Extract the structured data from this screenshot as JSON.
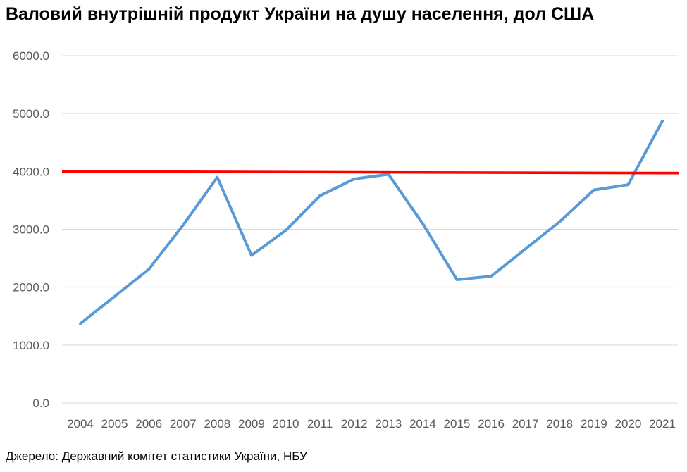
{
  "chart_data": {
    "type": "line",
    "title": "Валовий внутрішній продукт України на душу населення, дол США",
    "xlabel": "",
    "ylabel": "",
    "ylim": [
      0,
      6000
    ],
    "yticks": [
      "0.0",
      "1000.0",
      "2000.0",
      "3000.0",
      "4000.0",
      "5000.0",
      "6000.0"
    ],
    "yticks_values": [
      0,
      1000,
      2000,
      3000,
      4000,
      5000,
      6000
    ],
    "categories": [
      "2004",
      "2005",
      "2006",
      "2007",
      "2008",
      "2009",
      "2010",
      "2011",
      "2012",
      "2013",
      "2014",
      "2015",
      "2016",
      "2017",
      "2018",
      "2019",
      "2020",
      "2021"
    ],
    "series": [
      {
        "values": [
          1370,
          1840,
          2310,
          3070,
          3900,
          2550,
          2980,
          3580,
          3870,
          3950,
          3100,
          2130,
          2190,
          2660,
          3130,
          3680,
          3770,
          4870
        ],
        "color": "#5b9bd5"
      }
    ],
    "reference_line": {
      "start_value": 4000,
      "end_value": 3970,
      "color": "#ff0000"
    },
    "grid": true,
    "legend": "none"
  },
  "source": "Джерело: Державний комітет статистики України, НБУ"
}
